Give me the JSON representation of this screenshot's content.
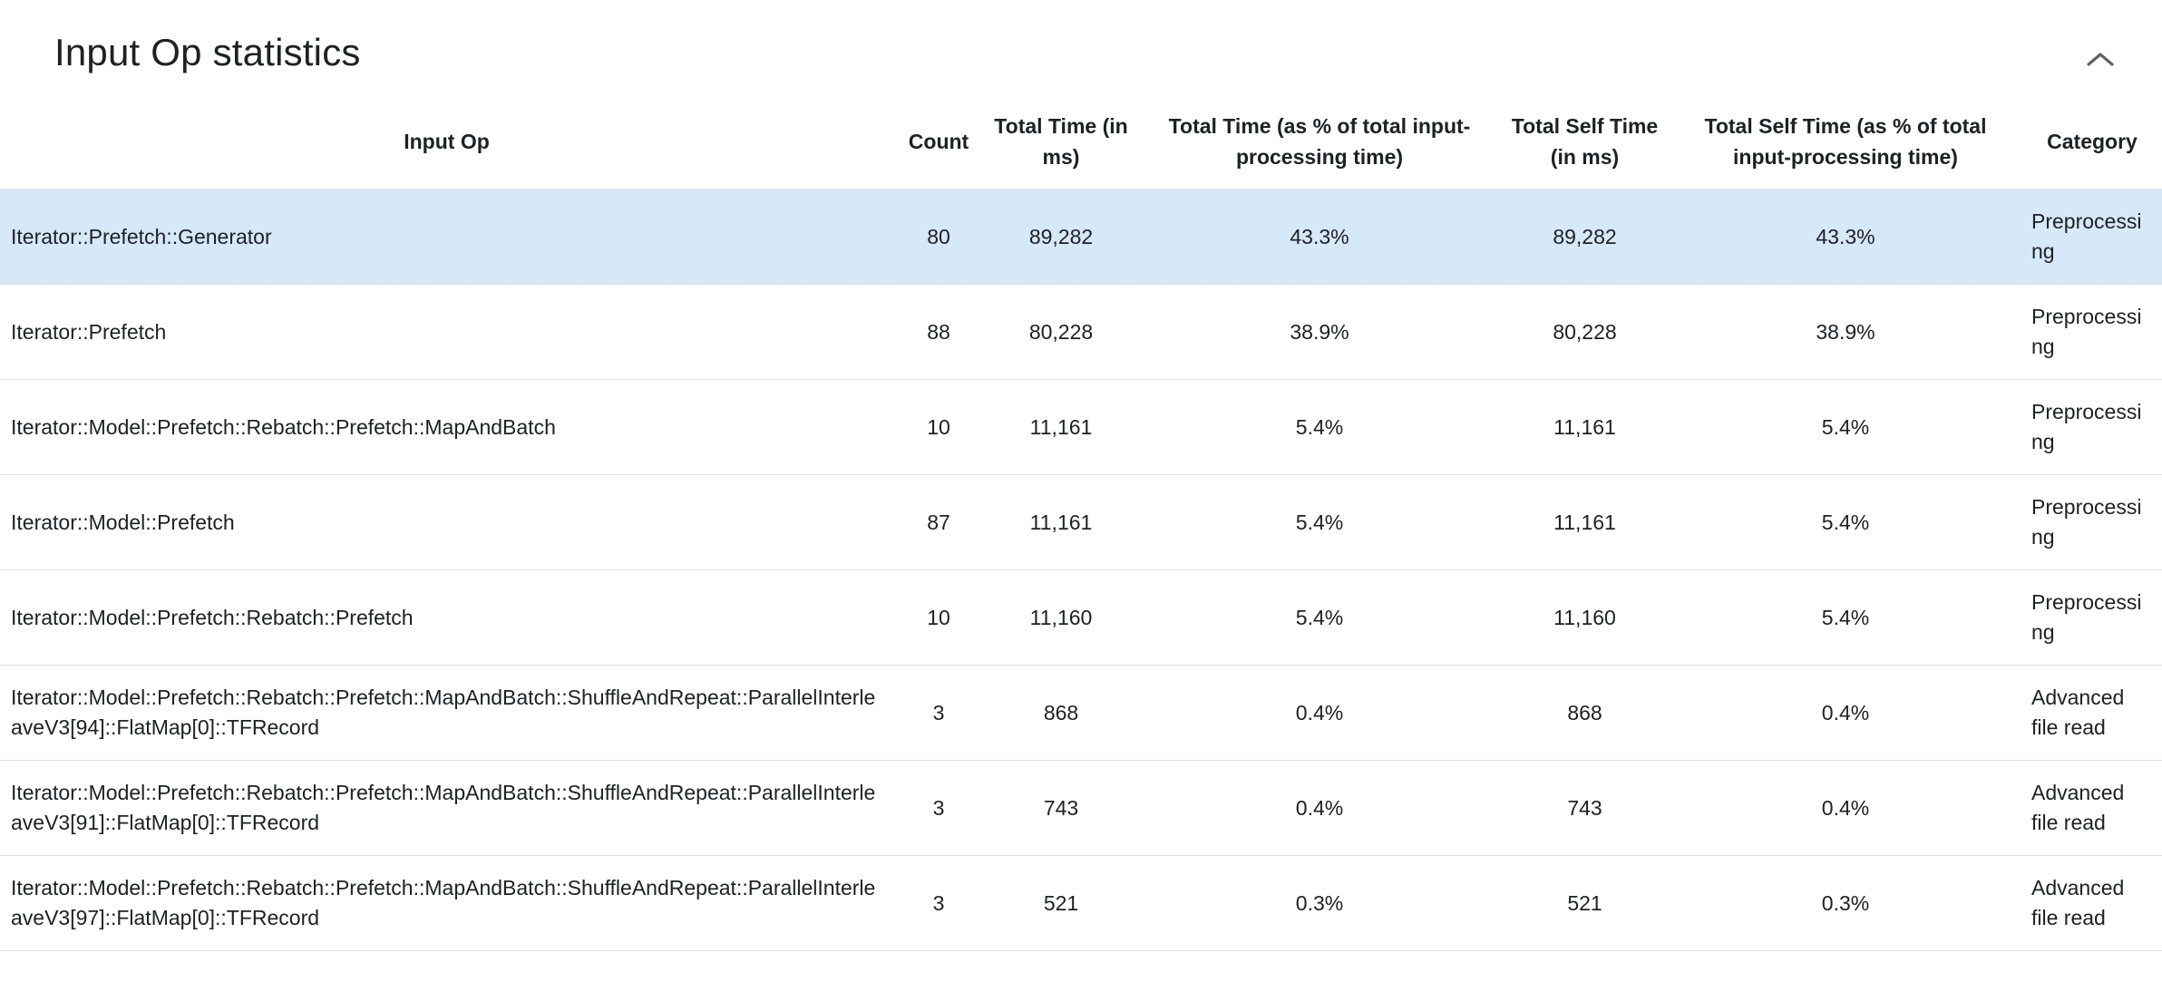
{
  "section": {
    "title": "Input Op statistics",
    "collapse_icon": "chevron-up-icon"
  },
  "table": {
    "columns": [
      {
        "label": "Input Op"
      },
      {
        "label": "Count"
      },
      {
        "label": "Total Time (in ms)"
      },
      {
        "label": "Total Time (as % of total input-processing time)"
      },
      {
        "label": "Total Self Time (in ms)"
      },
      {
        "label": "Total Self Time (as % of total input-processing time)"
      },
      {
        "label": "Category"
      }
    ],
    "rows": [
      {
        "op": "Iterator::Prefetch::Generator",
        "count": "80",
        "total_time": "89,282",
        "total_time_pct": "43.3%",
        "self_time": "89,282",
        "self_time_pct": "43.3%",
        "category": "Preprocessing",
        "highlighted": true
      },
      {
        "op": "Iterator::Prefetch",
        "count": "88",
        "total_time": "80,228",
        "total_time_pct": "38.9%",
        "self_time": "80,228",
        "self_time_pct": "38.9%",
        "category": "Preprocessing",
        "highlighted": false
      },
      {
        "op": "Iterator::Model::Prefetch::Rebatch::Prefetch::MapAndBatch",
        "count": "10",
        "total_time": "11,161",
        "total_time_pct": "5.4%",
        "self_time": "11,161",
        "self_time_pct": "5.4%",
        "category": "Preprocessing",
        "highlighted": false
      },
      {
        "op": "Iterator::Model::Prefetch",
        "count": "87",
        "total_time": "11,161",
        "total_time_pct": "5.4%",
        "self_time": "11,161",
        "self_time_pct": "5.4%",
        "category": "Preprocessing",
        "highlighted": false
      },
      {
        "op": "Iterator::Model::Prefetch::Rebatch::Prefetch",
        "count": "10",
        "total_time": "11,160",
        "total_time_pct": "5.4%",
        "self_time": "11,160",
        "self_time_pct": "5.4%",
        "category": "Preprocessing",
        "highlighted": false
      },
      {
        "op": "Iterator::Model::Prefetch::Rebatch::Prefetch::MapAndBatch::ShuffleAndRepeat::ParallelInterleaveV3[94]::FlatMap[0]::TFRecord",
        "count": "3",
        "total_time": "868",
        "total_time_pct": "0.4%",
        "self_time": "868",
        "self_time_pct": "0.4%",
        "category": "Advanced file read",
        "highlighted": false
      },
      {
        "op": "Iterator::Model::Prefetch::Rebatch::Prefetch::MapAndBatch::ShuffleAndRepeat::ParallelInterleaveV3[91]::FlatMap[0]::TFRecord",
        "count": "3",
        "total_time": "743",
        "total_time_pct": "0.4%",
        "self_time": "743",
        "self_time_pct": "0.4%",
        "category": "Advanced file read",
        "highlighted": false
      },
      {
        "op": "Iterator::Model::Prefetch::Rebatch::Prefetch::MapAndBatch::ShuffleAndRepeat::ParallelInterleaveV3[97]::FlatMap[0]::TFRecord",
        "count": "3",
        "total_time": "521",
        "total_time_pct": "0.3%",
        "self_time": "521",
        "self_time_pct": "0.3%",
        "category": "Advanced file read",
        "highlighted": false
      }
    ]
  }
}
